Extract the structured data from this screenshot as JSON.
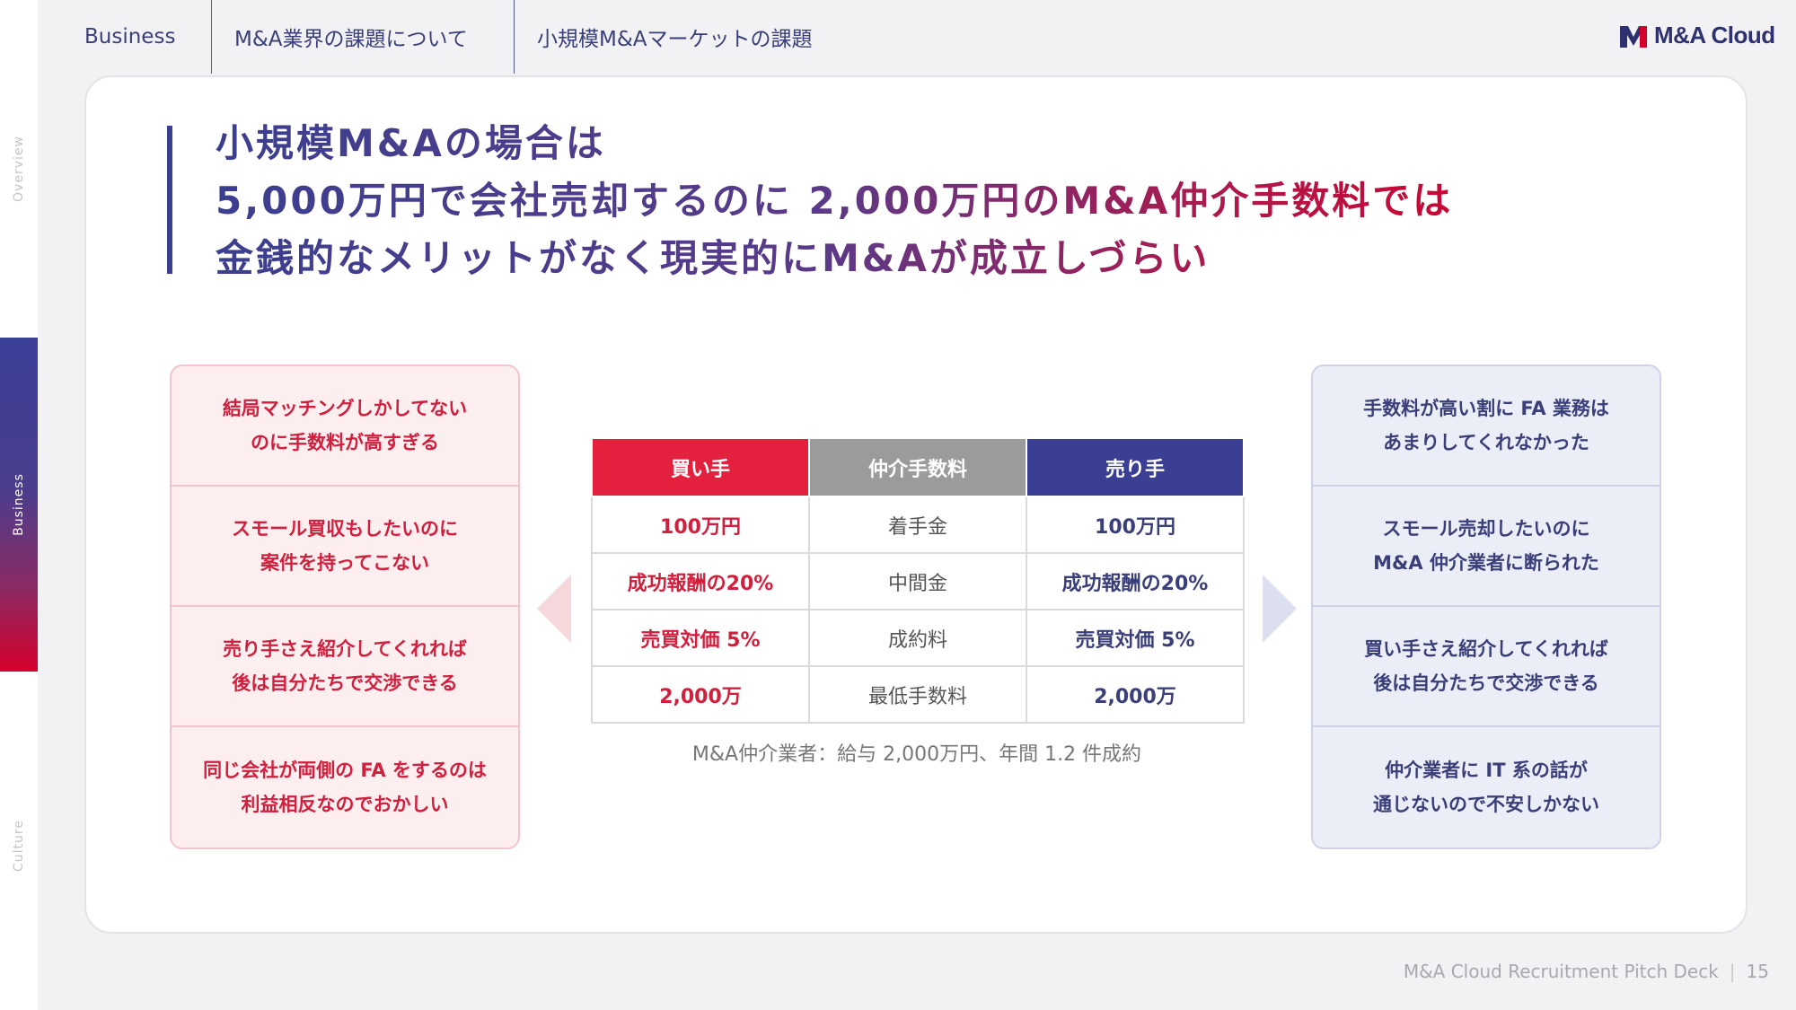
{
  "rail": {
    "items": [
      {
        "label": "Overview"
      },
      {
        "label": "Business"
      },
      {
        "label": "Culture"
      }
    ],
    "active_colors": [
      "#3a3f96",
      "#d6002c"
    ]
  },
  "header": {
    "section": "Business",
    "crumb1": "M&A業界の課題について",
    "crumb2": "小規模M&Aマーケットの課題",
    "logo_text": "M&A Cloud",
    "logo_icon": "m-logo-icon"
  },
  "title": {
    "line1": "小規模M&Aの場合は",
    "line2": "5,000万円で会社売却するのに 2,000万円のM&A仲介手数料では",
    "line3": "金銭的なメリットがなく現実的にM&Aが成立しづらい"
  },
  "buyer_voices": [
    "結局マッチングしかしてない\nのに手数料が高すぎる",
    "スモール買収もしたいのに\n案件を持ってこない",
    "売り手さえ紹介してくれれば\n後は自分たちで交渉できる",
    "同じ会社が両側の FA をするのは\n利益相反なのでおかしい"
  ],
  "seller_voices": [
    "手数料が高い割に FA 業務は\nあまりしてくれなかった",
    "スモール売却したいのに\nM&A 仲介業者に断られた",
    "買い手さえ紹介してくれれば\n後は自分たちで交渉できる",
    "仲介業者に IT 系の話が\n通じないので不安しかない"
  ],
  "fee_table": {
    "headers": {
      "buyer": "買い手",
      "fee": "仲介手数料",
      "seller": "売り手"
    },
    "rows": [
      {
        "buyer": "100万円",
        "fee": "着手金",
        "seller": "100万円"
      },
      {
        "buyer": "成功報酬の20%",
        "fee": "中間金",
        "seller": "成功報酬の20%"
      },
      {
        "buyer": "売買対価 5%",
        "fee": "成約料",
        "seller": "売買対価 5%"
      },
      {
        "buyer": "2,000万",
        "fee": "最低手数料",
        "seller": "2,000万"
      }
    ],
    "note": "M&A仲介業者：給与 2,000万円、年間 1.2 件成約"
  },
  "colors": {
    "red": "#e3203d",
    "navy": "#3b3f93",
    "gray": "#9b9b9b"
  },
  "footer": {
    "deck": "M&A Cloud Recruitment Pitch Deck",
    "page": "15"
  }
}
